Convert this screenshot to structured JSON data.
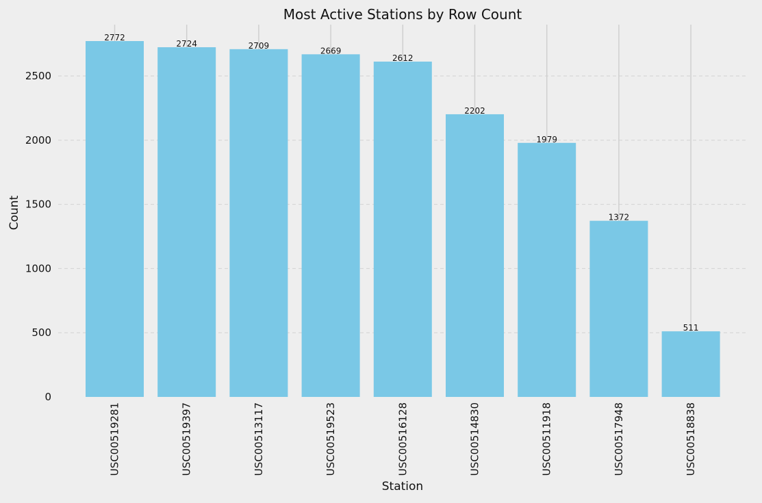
{
  "chart_data": {
    "type": "bar",
    "title": "Most Active Stations by Row Count",
    "xlabel": "Station",
    "ylabel": "Count",
    "categories": [
      "USC00519281",
      "USC00519397",
      "USC00513117",
      "USC00519523",
      "USC00516128",
      "USC00514830",
      "USC00511918",
      "USC00517948",
      "USC00518838"
    ],
    "values": [
      2772,
      2724,
      2709,
      2669,
      2612,
      2202,
      1979,
      1372,
      511
    ],
    "data_labels": [
      "2772",
      "2724",
      "2709",
      "2669",
      "2612",
      "2202",
      "1979",
      "1372",
      "511"
    ],
    "y_ticks": [
      0,
      500,
      1000,
      1500,
      2000,
      2500
    ],
    "ylim": [
      0,
      2900
    ],
    "grid": {
      "y": true,
      "x": true
    },
    "colors": {
      "bar": "#7ac8e6",
      "plot_background": "#eeeeee",
      "y_grid": "#d2d2d2",
      "x_grid": "#cfcfcf",
      "text": "#111111"
    }
  }
}
